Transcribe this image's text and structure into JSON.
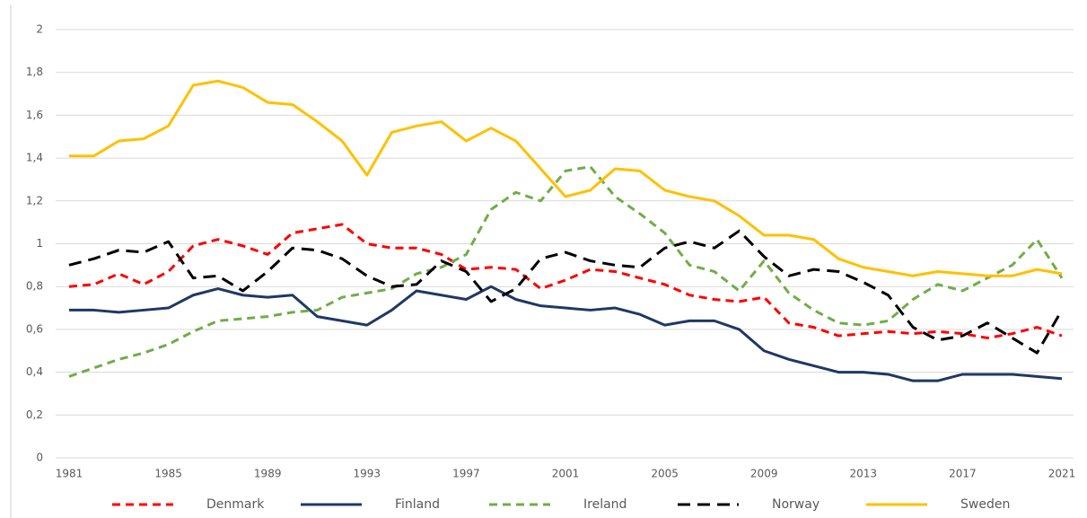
{
  "chart_data": {
    "type": "line",
    "x": [
      1981,
      1982,
      1983,
      1984,
      1985,
      1986,
      1987,
      1988,
      1989,
      1990,
      1991,
      1992,
      1993,
      1994,
      1995,
      1996,
      1997,
      1998,
      1999,
      2000,
      2001,
      2002,
      2003,
      2004,
      2005,
      2006,
      2007,
      2008,
      2009,
      2010,
      2011,
      2012,
      2013,
      2014,
      2015,
      2016,
      2017,
      2018,
      2019,
      2020,
      2021
    ],
    "xlim": [
      1981,
      2021
    ],
    "xticks": [
      1981,
      1985,
      1989,
      1993,
      1997,
      2001,
      2005,
      2009,
      2013,
      2017,
      2021
    ],
    "ylim": [
      0,
      2
    ],
    "yticks": [
      0,
      {
        "value": 0.2,
        "label": "0,2"
      },
      {
        "value": 0.4,
        "label": "0,4"
      },
      {
        "value": 0.6,
        "label": "0,6"
      },
      {
        "value": 0.8,
        "label": "0,8"
      },
      1,
      {
        "value": 1.2,
        "label": "1,2"
      },
      {
        "value": 1.4,
        "label": "1,4"
      },
      {
        "value": 1.6,
        "label": "1,6"
      },
      {
        "value": 1.8,
        "label": "1,8"
      },
      2
    ],
    "grid": true,
    "legend": "bottom",
    "series": [
      {
        "name": "Denmark",
        "color": "#ff0000",
        "dashed": true,
        "values": [
          0.8,
          0.81,
          0.86,
          0.81,
          0.87,
          0.99,
          1.02,
          0.99,
          0.95,
          1.05,
          1.07,
          1.09,
          1.0,
          0.98,
          0.98,
          0.95,
          0.88,
          0.89,
          0.88,
          0.79,
          0.83,
          0.88,
          0.87,
          0.84,
          0.81,
          0.76,
          0.74,
          0.73,
          0.75,
          0.63,
          0.61,
          0.57,
          0.58,
          0.59,
          0.58,
          0.59,
          0.58,
          0.56,
          0.58,
          0.61,
          0.57
        ]
      },
      {
        "name": "Finland",
        "color": "#1f3864",
        "dashed": false,
        "values": [
          0.69,
          0.69,
          0.68,
          0.69,
          0.7,
          0.76,
          0.79,
          0.76,
          0.75,
          0.76,
          0.66,
          0.64,
          0.62,
          0.69,
          0.78,
          0.76,
          0.74,
          0.8,
          0.74,
          0.71,
          0.7,
          0.69,
          0.7,
          0.67,
          0.62,
          0.64,
          0.64,
          0.6,
          0.5,
          0.46,
          0.43,
          0.4,
          0.4,
          0.39,
          0.36,
          0.36,
          0.39,
          0.39,
          0.39,
          0.38,
          0.37
        ]
      },
      {
        "name": "Ireland",
        "color": "#70ad47",
        "dashed": true,
        "values": [
          0.38,
          0.42,
          0.46,
          0.49,
          0.53,
          0.59,
          0.64,
          0.65,
          0.66,
          0.68,
          0.69,
          0.75,
          0.77,
          0.79,
          0.86,
          0.89,
          0.95,
          1.16,
          1.24,
          1.2,
          1.34,
          1.36,
          1.22,
          1.14,
          1.05,
          0.9,
          0.87,
          0.78,
          0.92,
          0.77,
          0.69,
          0.63,
          0.62,
          0.64,
          0.74,
          0.81,
          0.78,
          0.84,
          0.9,
          1.02,
          0.84
        ]
      },
      {
        "name": "Norway",
        "color": "#000000",
        "dashed": true,
        "values": [
          0.9,
          0.93,
          0.97,
          0.96,
          1.01,
          0.84,
          0.85,
          0.78,
          0.87,
          0.98,
          0.97,
          0.93,
          0.85,
          0.8,
          0.81,
          0.92,
          0.87,
          0.73,
          0.79,
          0.93,
          0.96,
          0.92,
          0.9,
          0.89,
          0.98,
          1.01,
          0.98,
          1.06,
          0.94,
          0.85,
          0.88,
          0.87,
          0.82,
          0.76,
          0.61,
          0.55,
          0.57,
          0.63,
          0.56,
          0.49,
          0.69
        ]
      },
      {
        "name": "Sweden",
        "color": "#ffc000",
        "dashed": false,
        "values": [
          1.41,
          1.41,
          1.48,
          1.49,
          1.55,
          1.74,
          1.76,
          1.73,
          1.66,
          1.65,
          1.57,
          1.48,
          1.32,
          1.52,
          1.55,
          1.57,
          1.48,
          1.54,
          1.48,
          1.35,
          1.22,
          1.25,
          1.35,
          1.34,
          1.25,
          1.22,
          1.2,
          1.13,
          1.04,
          1.04,
          1.02,
          0.93,
          0.89,
          0.87,
          0.85,
          0.87,
          0.86,
          0.85,
          0.85,
          0.88,
          0.86
        ]
      }
    ]
  }
}
